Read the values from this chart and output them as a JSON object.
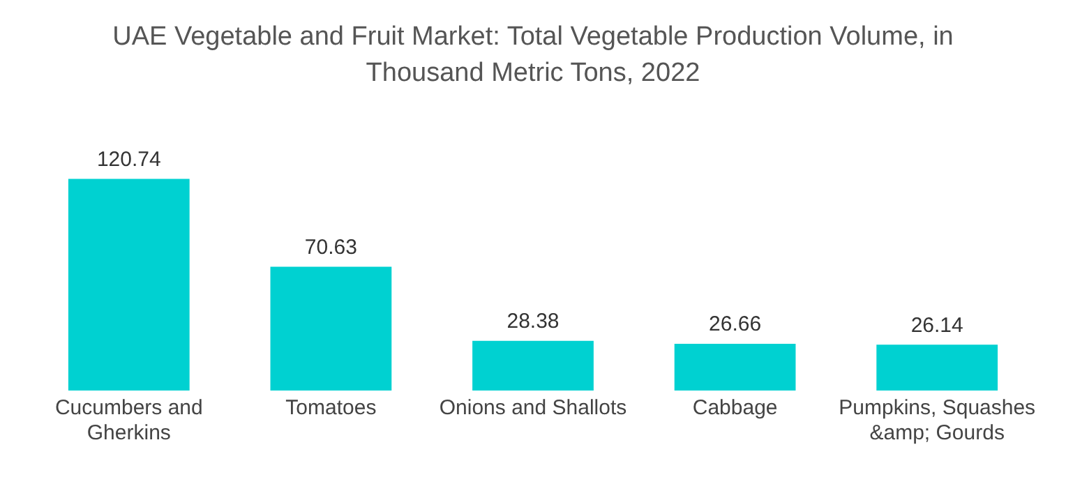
{
  "chart_data": {
    "type": "bar",
    "title": "UAE Vegetable and Fruit Market: Total Vegetable Production Volume, in Thousand Metric Tons, 2022",
    "categories": [
      "Cucumbers and Gherkins",
      "Tomatoes",
      "Onions and Shallots",
      "Cabbage",
      "Pumpkins, Squashes &amp; Gourds"
    ],
    "values": [
      120.74,
      70.63,
      28.38,
      26.66,
      26.14
    ],
    "color": "#00d1d1",
    "data_labels": true,
    "grid": false,
    "legend": false
  }
}
